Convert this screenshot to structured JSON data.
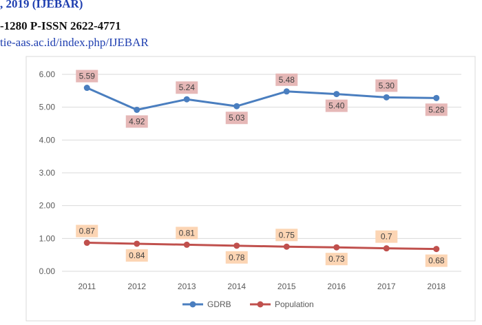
{
  "header": {
    "line1": ", 2019 (IJEBAR)",
    "line2": "-1280 P-ISSN 2622-4771",
    "line3": "tie-aas.ac.id/index.php/IJEBAR"
  },
  "chart_data": {
    "type": "line",
    "categories": [
      "2011",
      "2012",
      "2013",
      "2014",
      "2015",
      "2016",
      "2017",
      "2018"
    ],
    "y_ticks": [
      "0.00",
      "1.00",
      "2.00",
      "3.00",
      "4.00",
      "5.00",
      "6.00"
    ],
    "ylim": [
      0,
      6
    ],
    "grid": true,
    "legend_position": "bottom",
    "series": [
      {
        "name": "GDRB",
        "color": "#4a7ebf",
        "label_bg": "#e6b8b7",
        "values": [
          5.59,
          4.92,
          5.24,
          5.03,
          5.48,
          5.4,
          5.3,
          5.28
        ],
        "labels": [
          "5.59",
          "4.92",
          "5.24",
          "5.03",
          "5.48",
          "5.40",
          "5.30",
          "5.28"
        ]
      },
      {
        "name": "Population",
        "color": "#c0504d",
        "label_bg": "#fcd5b4",
        "values": [
          0.87,
          0.84,
          0.81,
          0.78,
          0.75,
          0.73,
          0.7,
          0.68
        ],
        "labels": [
          "0.87",
          "0.84",
          "0.81",
          "0.78",
          "0.75",
          "0.73",
          "0.7",
          "0.68"
        ]
      }
    ]
  }
}
